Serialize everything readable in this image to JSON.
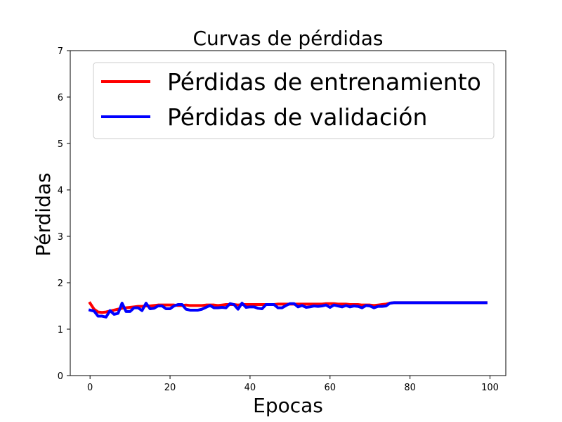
{
  "chart_data": {
    "type": "line",
    "title": "Curvas de pérdidas",
    "xlabel": "Epocas",
    "ylabel": "Pérdidas",
    "xlim": [
      -4.95,
      103.95
    ],
    "ylim": [
      0,
      7
    ],
    "xticks": [
      0,
      20,
      40,
      60,
      80,
      100
    ],
    "yticks": [
      0,
      1,
      2,
      3,
      4,
      5,
      6,
      7
    ],
    "grid": false,
    "legend_position": "top-right",
    "x": [
      0,
      1,
      2,
      3,
      4,
      5,
      6,
      7,
      8,
      9,
      10,
      11,
      12,
      13,
      14,
      15,
      16,
      17,
      18,
      19,
      20,
      21,
      22,
      23,
      24,
      25,
      26,
      27,
      28,
      29,
      30,
      31,
      32,
      33,
      34,
      35,
      36,
      37,
      38,
      39,
      40,
      41,
      42,
      43,
      44,
      45,
      46,
      47,
      48,
      49,
      50,
      51,
      52,
      53,
      54,
      55,
      56,
      57,
      58,
      59,
      60,
      61,
      62,
      63,
      64,
      65,
      66,
      67,
      68,
      69,
      70,
      71,
      72,
      73,
      74,
      75,
      76,
      77,
      78,
      79,
      80,
      81,
      82,
      83,
      84,
      85,
      86,
      87,
      88,
      89,
      90,
      91,
      92,
      93,
      94,
      95,
      96,
      97,
      98,
      99
    ],
    "series": [
      {
        "name": "Pérdidas de entrenamiento",
        "color": "#ff0000",
        "values": [
          1.56,
          1.43,
          1.37,
          1.36,
          1.37,
          1.39,
          1.41,
          1.43,
          1.45,
          1.46,
          1.47,
          1.48,
          1.49,
          1.49,
          1.5,
          1.5,
          1.51,
          1.52,
          1.52,
          1.52,
          1.52,
          1.52,
          1.51,
          1.51,
          1.52,
          1.51,
          1.51,
          1.51,
          1.51,
          1.52,
          1.52,
          1.52,
          1.51,
          1.52,
          1.53,
          1.53,
          1.53,
          1.52,
          1.53,
          1.53,
          1.53,
          1.53,
          1.53,
          1.53,
          1.53,
          1.53,
          1.53,
          1.54,
          1.54,
          1.54,
          1.54,
          1.54,
          1.54,
          1.54,
          1.54,
          1.54,
          1.54,
          1.54,
          1.54,
          1.55,
          1.55,
          1.55,
          1.54,
          1.54,
          1.54,
          1.53,
          1.53,
          1.53,
          1.52,
          1.52,
          1.52,
          1.51,
          1.52,
          1.53,
          1.54,
          1.56,
          1.57,
          1.57,
          1.57,
          1.57,
          1.57,
          1.57,
          1.57,
          1.57,
          1.57,
          1.57,
          1.57,
          1.57,
          1.57,
          1.57,
          1.57,
          1.57,
          1.57,
          1.57,
          1.57,
          1.57,
          1.57,
          1.57,
          1.57,
          1.57
        ]
      },
      {
        "name": "Pérdidas de validación",
        "color": "#0000ff",
        "values": [
          1.41,
          1.39,
          1.28,
          1.28,
          1.26,
          1.4,
          1.32,
          1.34,
          1.56,
          1.38,
          1.38,
          1.46,
          1.46,
          1.4,
          1.56,
          1.44,
          1.45,
          1.5,
          1.5,
          1.44,
          1.44,
          1.5,
          1.53,
          1.53,
          1.43,
          1.41,
          1.41,
          1.41,
          1.43,
          1.47,
          1.51,
          1.46,
          1.46,
          1.47,
          1.46,
          1.55,
          1.53,
          1.43,
          1.56,
          1.47,
          1.48,
          1.48,
          1.45,
          1.44,
          1.53,
          1.53,
          1.53,
          1.46,
          1.46,
          1.51,
          1.55,
          1.55,
          1.48,
          1.51,
          1.47,
          1.48,
          1.5,
          1.49,
          1.5,
          1.52,
          1.47,
          1.52,
          1.5,
          1.48,
          1.51,
          1.48,
          1.5,
          1.49,
          1.46,
          1.51,
          1.5,
          1.46,
          1.49,
          1.49,
          1.5,
          1.56,
          1.57,
          1.57,
          1.57,
          1.57,
          1.57,
          1.57,
          1.57,
          1.57,
          1.57,
          1.57,
          1.57,
          1.57,
          1.57,
          1.57,
          1.57,
          1.57,
          1.57,
          1.57,
          1.57,
          1.57,
          1.57,
          1.57,
          1.57,
          1.57
        ]
      }
    ]
  }
}
